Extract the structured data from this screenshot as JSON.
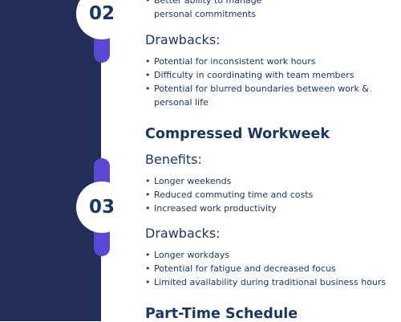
{
  "steps": [
    {
      "number": "02"
    },
    {
      "number": "03"
    }
  ],
  "section_02": {
    "benefits_tail": [
      "Better ability to manage personal commitments"
    ],
    "drawbacks_heading": "Drawbacks:",
    "drawbacks": [
      "Potential for inconsistent work hours",
      "Difficulty in coordinating with team members",
      "Potential for blurred boundaries between work & personal life"
    ]
  },
  "section_03": {
    "title": "Compressed Workweek",
    "benefits_heading": "Benefits:",
    "benefits": [
      "Longer weekends",
      "Reduced commuting time and costs",
      "Increased work productivity"
    ],
    "drawbacks_heading": "Drawbacks:",
    "drawbacks": [
      "Longer workdays",
      "Potential for fatigue and decreased focus",
      "Limited availability during traditional business hours"
    ]
  },
  "section_04": {
    "title": "Part-Time Schedule"
  },
  "colors": {
    "navy_band": "#232f58",
    "accent_purple": "#5b49d6",
    "text_navy": "#1d3661"
  }
}
